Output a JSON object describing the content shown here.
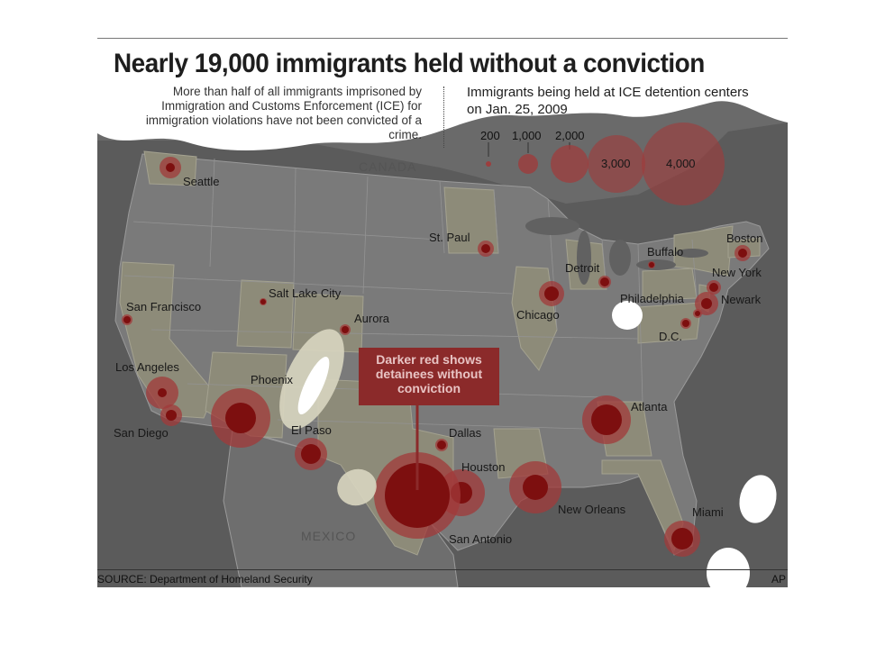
{
  "graphic": {
    "title": "Nearly 19,000 immigrants held without a conviction",
    "subtitle": "More than half of all immigrants imprisoned by Immigration and Customs Enforcement (ICE) for immigration violations have not been convicted of a crime.",
    "legend_title": "Immigrants being held at ICE detention centers on Jan. 25, 2009",
    "legend_sizes": [
      "200",
      "1,000",
      "2,000",
      "3,000",
      "4,000"
    ],
    "callout": "Darker red shows detainees without conviction",
    "source": "SOURCE: Department of Homeland Security",
    "credit": "AP"
  },
  "map": {
    "country_labels": {
      "north": "CANADA",
      "south": "MEXICO"
    },
    "colors": {
      "background": "#5b5b5b",
      "land": "#7a7a7a",
      "highlighted_state": "#8d8b79",
      "state_border": "#9a9a9a",
      "total_circle": "#a23a3a",
      "no_conviction_circle": "#7d0f0f",
      "callout_box": "#8b2a2a"
    },
    "cities": [
      {
        "name": "Seattle",
        "total_size": "small",
        "highlighted_state": "Washington"
      },
      {
        "name": "San Francisco",
        "total_size": "small",
        "highlighted_state": "California"
      },
      {
        "name": "Los Angeles",
        "total_size": "small",
        "highlighted_state": "California"
      },
      {
        "name": "San Diego",
        "total_size": "small",
        "highlighted_state": "California"
      },
      {
        "name": "Salt Lake City",
        "total_size": "tiny",
        "highlighted_state": "Utah"
      },
      {
        "name": "Phoenix",
        "total_size": "large",
        "highlighted_state": "Arizona"
      },
      {
        "name": "Aurora",
        "total_size": "tiny",
        "highlighted_state": "Colorado"
      },
      {
        "name": "El Paso",
        "total_size": "small",
        "highlighted_state": "Texas"
      },
      {
        "name": "Dallas",
        "total_size": "tiny",
        "highlighted_state": "Texas"
      },
      {
        "name": "Houston",
        "total_size": "medium",
        "highlighted_state": "Texas"
      },
      {
        "name": "San Antonio",
        "total_size": "largest",
        "highlighted_state": "Texas"
      },
      {
        "name": "St. Paul",
        "total_size": "tiny",
        "highlighted_state": "Minnesota"
      },
      {
        "name": "Chicago",
        "total_size": "small",
        "highlighted_state": "Illinois"
      },
      {
        "name": "Detroit",
        "total_size": "tiny",
        "highlighted_state": "Michigan"
      },
      {
        "name": "New Orleans",
        "total_size": "medium",
        "highlighted_state": "Louisiana"
      },
      {
        "name": "Atlanta",
        "total_size": "medium",
        "highlighted_state": "Georgia"
      },
      {
        "name": "Miami",
        "total_size": "small",
        "highlighted_state": "Florida"
      },
      {
        "name": "Buffalo",
        "total_size": "tiny",
        "highlighted_state": "New York"
      },
      {
        "name": "Boston",
        "total_size": "tiny",
        "highlighted_state": "Massachusetts"
      },
      {
        "name": "New York",
        "total_size": "tiny",
        "highlighted_state": "New York"
      },
      {
        "name": "Newark",
        "total_size": "small",
        "highlighted_state": "New Jersey"
      },
      {
        "name": "Philadelphia",
        "total_size": "tiny",
        "highlighted_state": "Pennsylvania"
      },
      {
        "name": "D.C.",
        "total_size": "tiny",
        "highlighted_state": "Virginia"
      }
    ]
  }
}
